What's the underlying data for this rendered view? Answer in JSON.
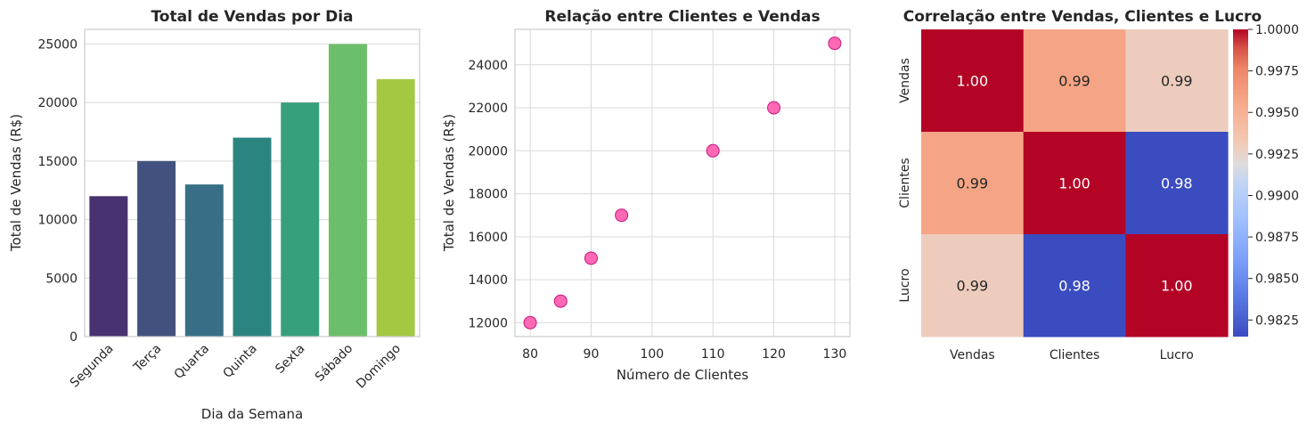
{
  "chart_data": [
    {
      "type": "bar",
      "title": "Total de Vendas por Dia",
      "xlabel": "Dia da Semana",
      "ylabel": "Total de Vendas (R$)",
      "categories": [
        "Segunda",
        "Terça",
        "Quarta",
        "Quinta",
        "Sexta",
        "Sábado",
        "Domingo"
      ],
      "values": [
        12000,
        15000,
        13000,
        17000,
        20000,
        25000,
        22000
      ],
      "ylim": [
        0,
        26250
      ],
      "yticks": [
        0,
        5000,
        10000,
        15000,
        20000,
        25000
      ],
      "colors": [
        "#48326f",
        "#43517e",
        "#386f86",
        "#2c8480",
        "#36a07c",
        "#6cbf6a",
        "#a3c842"
      ],
      "grid": true
    },
    {
      "type": "scatter",
      "title": "Relação entre Clientes e Vendas",
      "xlabel": "Número de Clientes",
      "ylabel": "Total de Vendas (R$)",
      "points": [
        [
          80,
          12000
        ],
        [
          85,
          13000
        ],
        [
          90,
          15000
        ],
        [
          95,
          17000
        ],
        [
          110,
          20000
        ],
        [
          120,
          22000
        ],
        [
          130,
          25000
        ]
      ],
      "xlim": [
        77.5,
        132.5
      ],
      "ylim": [
        11350,
        25650
      ],
      "xticks": [
        80,
        90,
        100,
        110,
        120,
        130
      ],
      "yticks": [
        12000,
        14000,
        16000,
        18000,
        20000,
        22000,
        24000
      ],
      "marker_color": "#ff69b4",
      "marker_edge": "#c71585",
      "grid": true
    },
    {
      "type": "heatmap",
      "title": "Correlação entre Vendas, Clientes e Lucro",
      "rows": [
        "Vendas",
        "Clientes",
        "Lucro"
      ],
      "cols": [
        "Vendas",
        "Clientes",
        "Lucro"
      ],
      "values": [
        [
          1.0,
          0.99,
          0.99
        ],
        [
          0.99,
          1.0,
          0.98
        ],
        [
          0.99,
          0.98,
          1.0
        ]
      ],
      "labels": [
        [
          "1.00",
          "0.99",
          "0.99"
        ],
        [
          "0.99",
          "1.00",
          "0.98"
        ],
        [
          "0.99",
          "0.98",
          "1.00"
        ]
      ],
      "cell_colors": [
        [
          "#b40426",
          "#f5a585",
          "#edccbd"
        ],
        [
          "#f5a585",
          "#b40426",
          "#3b4cc0"
        ],
        [
          "#edccbd",
          "#3b4cc0",
          "#b40426"
        ]
      ],
      "text_colors": [
        [
          "#ffffff",
          "#262626",
          "#262626"
        ],
        [
          "#262626",
          "#ffffff",
          "#ffffff"
        ],
        [
          "#262626",
          "#ffffff",
          "#ffffff"
        ]
      ],
      "colorbar": {
        "range": [
          0.9815,
          1.0
        ],
        "ticks": [
          "1.0000",
          "0.9975",
          "0.9950",
          "0.9925",
          "0.9900",
          "0.9875",
          "0.9850",
          "0.9825"
        ],
        "tick_values": [
          1.0,
          0.9975,
          0.995,
          0.9925,
          0.99,
          0.9875,
          0.985,
          0.9825
        ],
        "colormap": "coolwarm"
      }
    }
  ]
}
